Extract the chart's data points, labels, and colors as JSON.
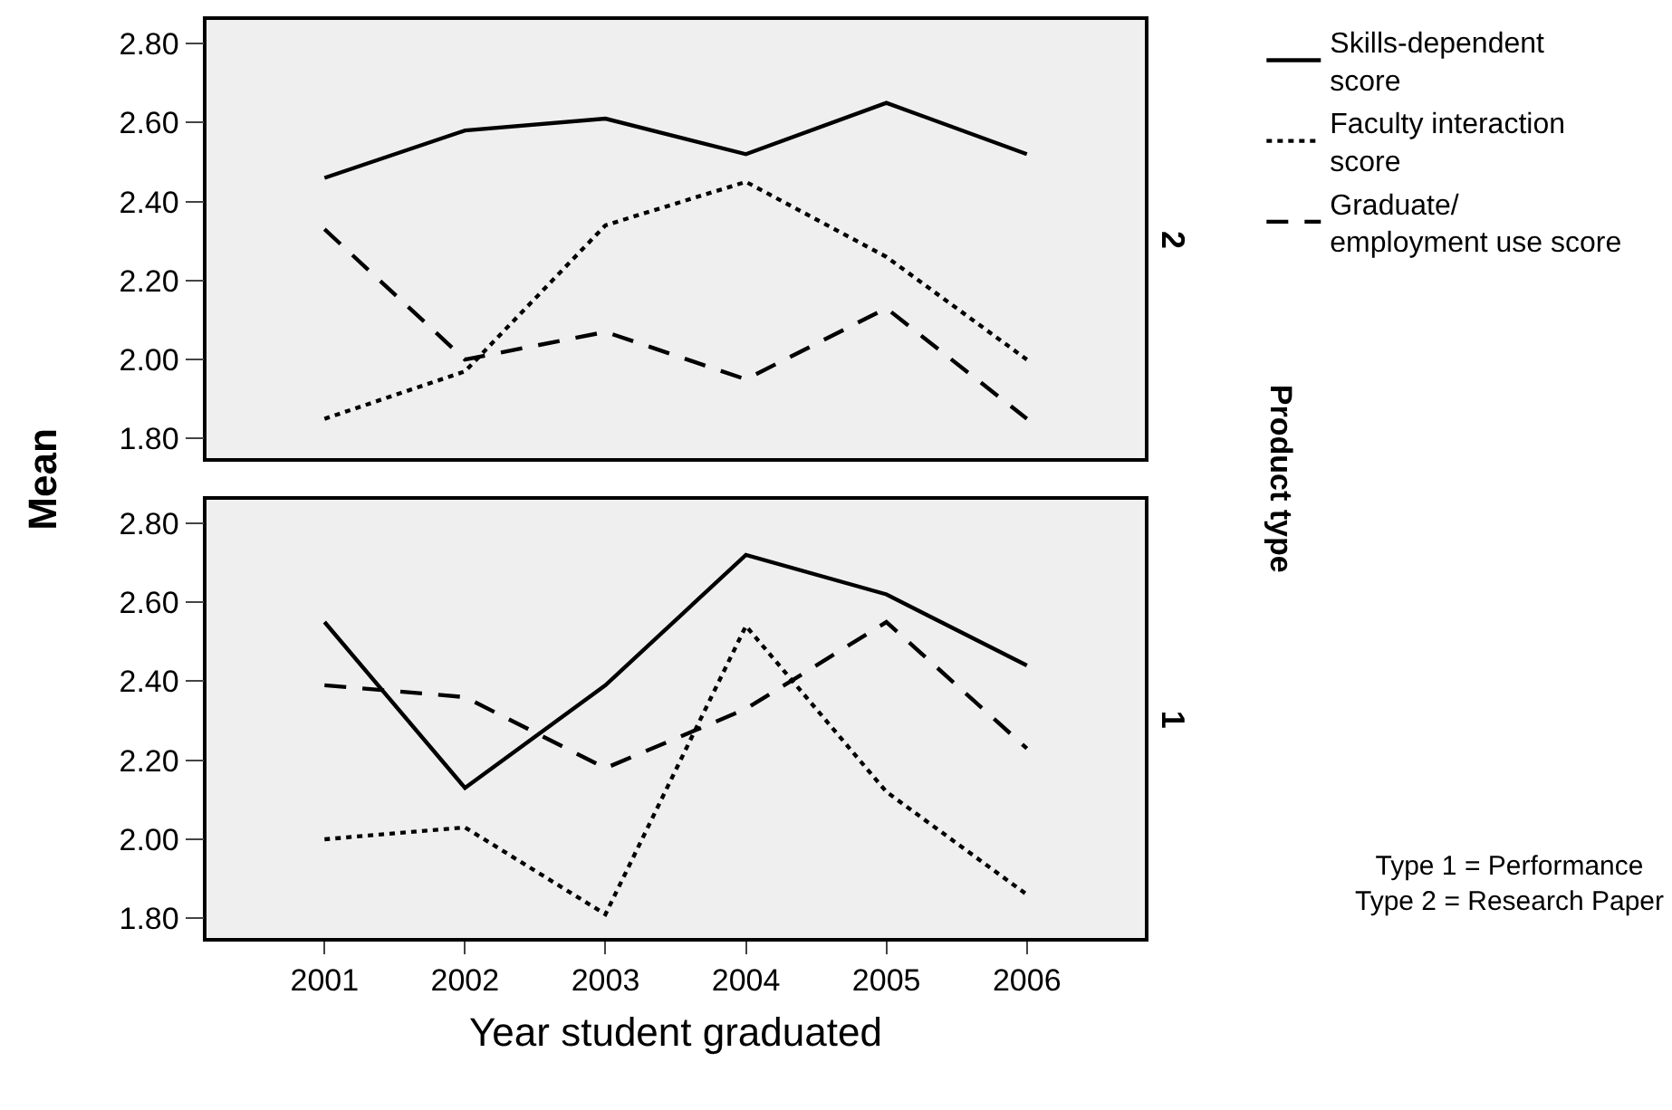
{
  "chart_data": [
    {
      "type": "line",
      "title": "2",
      "ylabel": "Mean",
      "y2label": "Product type",
      "categories": [
        "2001",
        "2002",
        "2003",
        "2004",
        "2005",
        "2006"
      ],
      "ylim": [
        1.75,
        2.86
      ],
      "yticks": [
        {
          "value": 1.8,
          "label": "1.80"
        },
        {
          "value": 2.0,
          "label": "2.00"
        },
        {
          "value": 2.2,
          "label": "2.20"
        },
        {
          "value": 2.4,
          "label": "2.40"
        },
        {
          "value": 2.6,
          "label": "2.60"
        },
        {
          "value": 2.8,
          "label": "2.80"
        }
      ],
      "tick_labels": "y",
      "grid": false,
      "legend": "top right",
      "marker": "none",
      "series": [
        {
          "name": "Skills-dependent score",
          "color": "#000000",
          "line_style": "solid",
          "values": [
            2.46,
            2.58,
            2.61,
            2.52,
            2.65,
            2.52
          ]
        },
        {
          "name": "Faculty interaction score",
          "color": "#000000",
          "line_style": "dotted",
          "values": [
            1.85,
            1.97,
            2.34,
            2.45,
            2.26,
            2.0
          ]
        },
        {
          "name": "Graduate/employment use score",
          "color": "#000000",
          "line_style": "dashed",
          "values": [
            2.33,
            2.0,
            2.07,
            1.95,
            2.13,
            1.85
          ]
        }
      ]
    },
    {
      "type": "line",
      "title": "1",
      "xlabel": "Year student graduated",
      "categories": [
        "2001",
        "2002",
        "2003",
        "2004",
        "2005",
        "2006"
      ],
      "ylim": [
        1.75,
        2.86
      ],
      "yticks": [
        {
          "value": 1.8,
          "label": "1.80"
        },
        {
          "value": 2.0,
          "label": "2.00"
        },
        {
          "value": 2.2,
          "label": "2.20"
        },
        {
          "value": 2.4,
          "label": "2.40"
        },
        {
          "value": 2.6,
          "label": "2.60"
        },
        {
          "value": 2.8,
          "label": "2.80"
        }
      ],
      "grid": false,
      "marker": "none",
      "annotations": [
        "Type 1 = Performance\nType 2 = Research Paper"
      ],
      "series": [
        {
          "color": "#000000",
          "line_style": "solid",
          "values": [
            2.55,
            2.13,
            2.39,
            2.72,
            2.62,
            2.44
          ]
        },
        {
          "color": "#000000",
          "line_style": "dotted",
          "values": [
            2.0,
            2.03,
            1.81,
            2.54,
            2.12,
            1.86
          ]
        },
        {
          "color": "#000000",
          "line_style": "dashed",
          "values": [
            2.39,
            2.36,
            2.18,
            2.33,
            2.55,
            2.23
          ]
        }
      ]
    }
  ]
}
